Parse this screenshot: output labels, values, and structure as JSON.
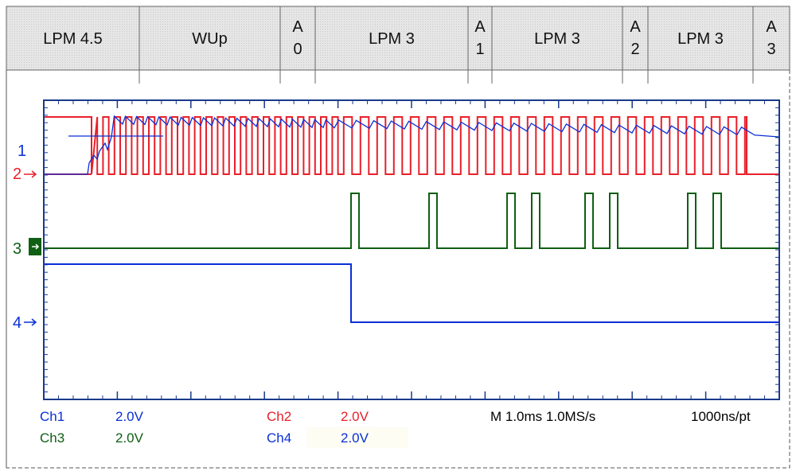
{
  "phase_bar": {
    "segments": [
      {
        "label": "LPM 4.5"
      },
      {
        "label": "WUp"
      },
      {
        "label": "A",
        "sub": "0"
      },
      {
        "label": "LPM 3"
      },
      {
        "label": "A",
        "sub": "1"
      },
      {
        "label": "LPM 3"
      },
      {
        "label": "A",
        "sub": "2"
      },
      {
        "label": "LPM 3"
      },
      {
        "label": "A",
        "sub": "3"
      }
    ]
  },
  "channels": {
    "ch1": {
      "marker": "1",
      "color": "#0a2fd6"
    },
    "ch2": {
      "marker": "2",
      "color": "#e8202a"
    },
    "ch3": {
      "marker": "3",
      "color": "#0f5f14"
    },
    "ch4": {
      "marker": "4",
      "color": "#0a2fd6"
    }
  },
  "readouts": {
    "ch1_name": "Ch1",
    "ch1_scale": "2.0V",
    "ch2_name": "Ch2",
    "ch2_scale": "2.0V",
    "ch3_name": "Ch3",
    "ch3_scale": "2.0V",
    "ch4_name": "Ch4",
    "ch4_scale": "2.0V",
    "timebase": "M 1.0ms 1.0MS/s",
    "resolution": "1000ns/pt"
  },
  "colors": {
    "grid": "#1a3a8a",
    "phase_bg": "#e8e8e8",
    "ch1": "#0a2fd6",
    "ch2": "#e8202a",
    "ch3": "#0f5f14",
    "ch4": "#0a2fd6"
  }
}
